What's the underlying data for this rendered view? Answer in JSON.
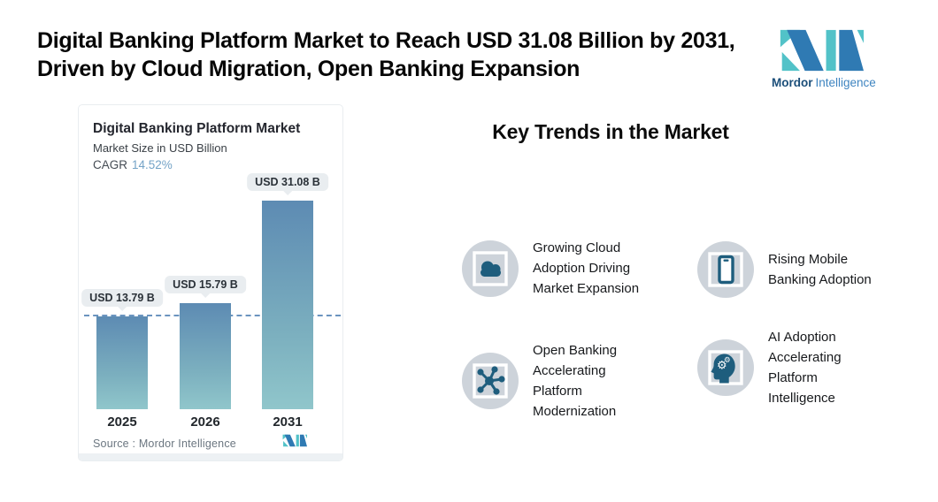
{
  "header": {
    "title": "Digital Banking Platform Market to Reach USD 31.08 Billion by 2031,\nDriven by Cloud Migration, Open Banking Expansion",
    "logo": {
      "bold": "Mordor",
      "light": "Intelligence"
    }
  },
  "chart_card": {
    "title": "Digital Banking Platform Market",
    "subtitle": "Market Size in USD Billion",
    "cagr_label": "CAGR",
    "cagr_value": "14.52%",
    "source": "Source :  Mordor Intelligence"
  },
  "chart_data": {
    "type": "bar",
    "title": "Digital Banking Platform Market",
    "subtitle": "Market Size in USD Billion",
    "cagr_pct": 14.52,
    "categories": [
      "2025",
      "2026",
      "2031"
    ],
    "values": [
      13.79,
      15.79,
      31.08
    ],
    "value_labels": [
      "USD 13.79 B",
      "USD 15.79 B",
      "USD 31.08 B"
    ],
    "unit": "USD Billion",
    "ylim": [
      0,
      31.08
    ],
    "reference_line_value": 13.79,
    "legend": "none",
    "grid": "off"
  },
  "trends": {
    "heading": "Key Trends in the Market",
    "items": [
      {
        "icon": "cloud-icon",
        "label": "Growing Cloud\nAdoption Driving\nMarket Expansion"
      },
      {
        "icon": "mobile-icon",
        "label": "Rising Mobile\nBanking Adoption"
      },
      {
        "icon": "network-icon",
        "label": "Open Banking\nAccelerating\nPlatform\nModernization"
      },
      {
        "icon": "ai-head-icon",
        "label": "AI Adoption\nAccelerating\nPlatform\nIntelligence"
      }
    ]
  },
  "colors": {
    "bar_gradient_top": "#5d8bb3",
    "bar_gradient_bottom": "#90c6cb",
    "reference_line": "#6b94bf",
    "value_tag_bg": "#e9edf0",
    "cagr_value": "#74a3c7",
    "badge_bg": "#cdd3da",
    "trend_icon": "#1e5d7d",
    "logo_dark_blue": "#2f7ab3",
    "logo_teal": "#52c2c8"
  }
}
